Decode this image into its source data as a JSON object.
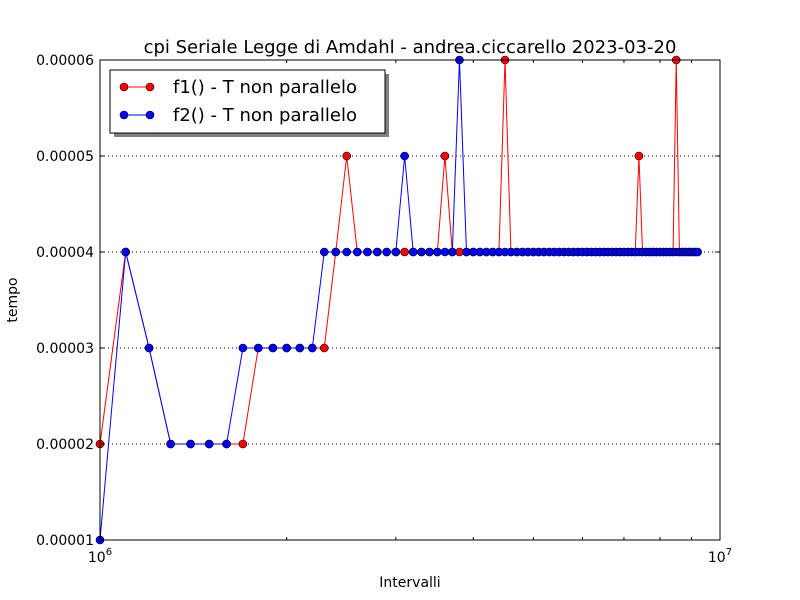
{
  "chart_data": {
    "type": "line",
    "title": "cpi Seriale  Legge di Amdahl  -  andrea.ciccarello  2023-03-20",
    "xlabel": "Intervalli",
    "ylabel": "tempo",
    "xscale": "log",
    "xlim": [
      1000000,
      10000000
    ],
    "ylim": [
      1e-05,
      6e-05
    ],
    "x_ticks": [
      {
        "value": 1000000,
        "base": "10",
        "exp": "6"
      },
      {
        "value": 10000000,
        "base": "10",
        "exp": "7"
      }
    ],
    "y_ticks": [
      {
        "value": 1e-05,
        "label": "0.00001"
      },
      {
        "value": 2e-05,
        "label": "0.00002"
      },
      {
        "value": 3e-05,
        "label": "0.00003"
      },
      {
        "value": 4e-05,
        "label": "0.00004"
      },
      {
        "value": 5e-05,
        "label": "0.00005"
      },
      {
        "value": 6e-05,
        "label": "0.00006"
      }
    ],
    "grid": "y-dotted",
    "legend_position": "top-left",
    "series": [
      {
        "name": "f1() - T non parallelo",
        "color": "#ff0000",
        "x": [
          1000000,
          1100000,
          1200000,
          1300000,
          1400000,
          1500000,
          1600000,
          1700000,
          1800000,
          1900000,
          2000000,
          2100000,
          2200000,
          2300000,
          2400000,
          2500000,
          2600000,
          2700000,
          2800000,
          2900000,
          3000000,
          3100000,
          3200000,
          3300000,
          3400000,
          3500000,
          3600000,
          3700000,
          3800000,
          3900000,
          4000000,
          4100000,
          4200000,
          4300000,
          4400000,
          4500000,
          4600000,
          4700000,
          4800000,
          4900000,
          5000000,
          5100000,
          5200000,
          5300000,
          5400000,
          5500000,
          5600000,
          5700000,
          5800000,
          5900000,
          6000000,
          6100000,
          6200000,
          6300000,
          6400000,
          6500000,
          6600000,
          6700000,
          6800000,
          6900000,
          7000000,
          7100000,
          7200000,
          7300000,
          7400000,
          7500000,
          7600000,
          7700000,
          7800000,
          7900000,
          8000000,
          8100000,
          8200000,
          8300000,
          8400000,
          8500000,
          8600000,
          8700000,
          8800000,
          8900000,
          9000000,
          9100000,
          9200000
        ],
        "values": [
          2e-05,
          4e-05,
          3e-05,
          2e-05,
          2e-05,
          2e-05,
          2e-05,
          2e-05,
          3e-05,
          3e-05,
          3e-05,
          3e-05,
          3e-05,
          3e-05,
          4e-05,
          5e-05,
          4e-05,
          4e-05,
          4e-05,
          4e-05,
          4e-05,
          4e-05,
          4e-05,
          4e-05,
          4e-05,
          4e-05,
          5e-05,
          4e-05,
          4e-05,
          4e-05,
          4e-05,
          4e-05,
          4e-05,
          4e-05,
          4e-05,
          6e-05,
          4e-05,
          4e-05,
          4e-05,
          4e-05,
          4e-05,
          4e-05,
          4e-05,
          4e-05,
          4e-05,
          4e-05,
          4e-05,
          4e-05,
          4e-05,
          4e-05,
          4e-05,
          4e-05,
          4e-05,
          4e-05,
          4e-05,
          4e-05,
          4e-05,
          4e-05,
          4e-05,
          4e-05,
          4e-05,
          4e-05,
          4e-05,
          4e-05,
          5e-05,
          4e-05,
          4e-05,
          4e-05,
          4e-05,
          4e-05,
          4e-05,
          4e-05,
          4e-05,
          4e-05,
          4e-05,
          6e-05,
          4e-05,
          4e-05,
          4e-05,
          4e-05,
          4e-05,
          4e-05,
          4e-05
        ]
      },
      {
        "name": "f2() - T non parallelo",
        "color": "#0000ff",
        "x": [
          1000000,
          1100000,
          1200000,
          1300000,
          1400000,
          1500000,
          1600000,
          1700000,
          1800000,
          1900000,
          2000000,
          2100000,
          2200000,
          2300000,
          2400000,
          2500000,
          2600000,
          2700000,
          2800000,
          2900000,
          3000000,
          3100000,
          3200000,
          3300000,
          3400000,
          3500000,
          3600000,
          3700000,
          3800000,
          3900000,
          4000000,
          4100000,
          4200000,
          4300000,
          4400000,
          4500000,
          4600000,
          4700000,
          4800000,
          4900000,
          5000000,
          5100000,
          5200000,
          5300000,
          5400000,
          5500000,
          5600000,
          5700000,
          5800000,
          5900000,
          6000000,
          6100000,
          6200000,
          6300000,
          6400000,
          6500000,
          6600000,
          6700000,
          6800000,
          6900000,
          7000000,
          7100000,
          7200000,
          7300000,
          7400000,
          7500000,
          7600000,
          7700000,
          7800000,
          7900000,
          8000000,
          8100000,
          8200000,
          8300000,
          8400000,
          8500000,
          8600000,
          8700000,
          8800000,
          8900000,
          9000000,
          9100000,
          9200000
        ],
        "values": [
          1e-05,
          4e-05,
          3e-05,
          2e-05,
          2e-05,
          2e-05,
          2e-05,
          3e-05,
          3e-05,
          3e-05,
          3e-05,
          3e-05,
          3e-05,
          4e-05,
          4e-05,
          4e-05,
          4e-05,
          4e-05,
          4e-05,
          4e-05,
          4e-05,
          5e-05,
          4e-05,
          4e-05,
          4e-05,
          4e-05,
          4e-05,
          4e-05,
          6e-05,
          4e-05,
          4e-05,
          4e-05,
          4e-05,
          4e-05,
          4e-05,
          4e-05,
          4e-05,
          4e-05,
          4e-05,
          4e-05,
          4e-05,
          4e-05,
          4e-05,
          4e-05,
          4e-05,
          4e-05,
          4e-05,
          4e-05,
          4e-05,
          4e-05,
          4e-05,
          4e-05,
          4e-05,
          4e-05,
          4e-05,
          4e-05,
          4e-05,
          4e-05,
          4e-05,
          4e-05,
          4e-05,
          4e-05,
          4e-05,
          4e-05,
          4e-05,
          4e-05,
          4e-05,
          4e-05,
          4e-05,
          4e-05,
          4e-05,
          4e-05,
          4e-05,
          4e-05,
          4e-05,
          4e-05,
          4e-05,
          4e-05,
          4e-05,
          4e-05,
          4e-05,
          4e-05,
          4e-05
        ]
      }
    ]
  }
}
